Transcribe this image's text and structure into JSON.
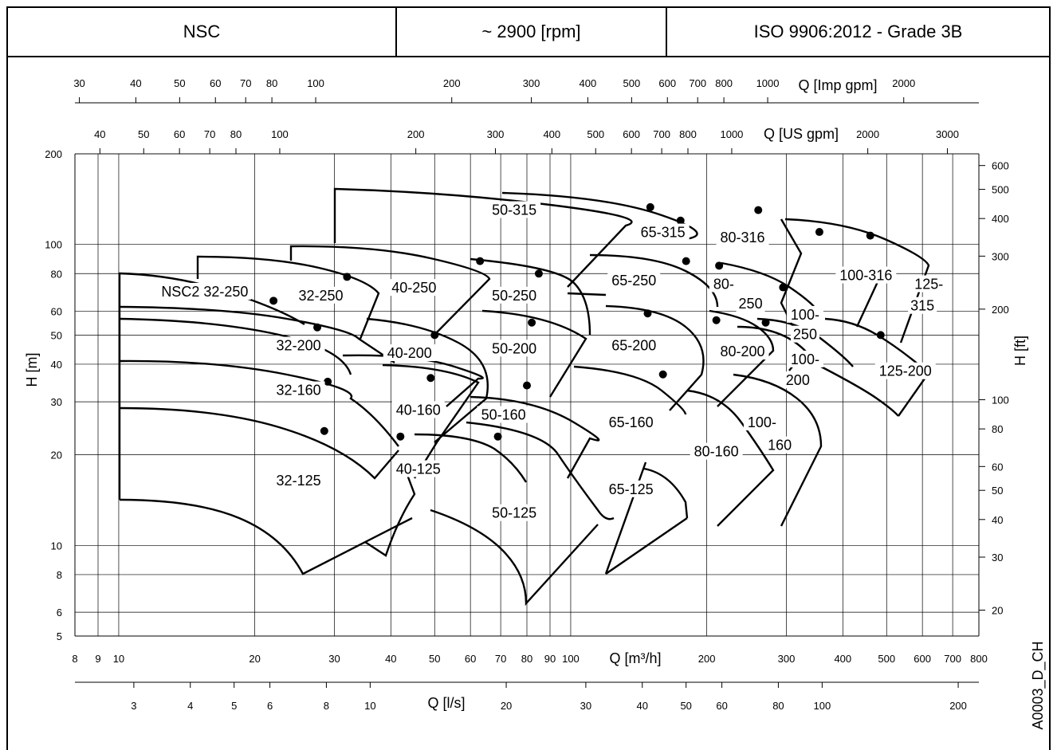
{
  "header": {
    "model": "NSC",
    "speed": "~ 2900 [rpm]",
    "standard": "ISO 9906:2012 - Grade 3B"
  },
  "figure_code": "A0003_D_CH",
  "chart_data": {
    "type": "performance-range-chart",
    "scale": "log-log",
    "xlabel": "Q [m³/h]",
    "ylabel": "H [m]",
    "ylabel_right": "H [ft]",
    "xlabel_ls": "Q [l/s]",
    "xlabel_us": "Q [US gpm]",
    "xlabel_imp": "Q [Imp gpm]",
    "xlim": [
      8,
      800
    ],
    "ylim": [
      5,
      200
    ],
    "x_ticks": [
      8,
      9,
      10,
      20,
      30,
      40,
      50,
      60,
      70,
      80,
      90,
      100,
      200,
      300,
      400,
      500,
      600,
      700,
      800
    ],
    "y_ticks": [
      5,
      6,
      8,
      10,
      20,
      30,
      40,
      50,
      60,
      80,
      100,
      200
    ],
    "ft_ticks": [
      20,
      30,
      40,
      50,
      60,
      80,
      100,
      200,
      300,
      400,
      500,
      600
    ],
    "ls_ticks": [
      3,
      4,
      5,
      6,
      8,
      10,
      20,
      30,
      40,
      50,
      60,
      80,
      100,
      200
    ],
    "us_ticks": [
      40,
      50,
      60,
      70,
      80,
      100,
      200,
      300,
      400,
      500,
      600,
      700,
      800,
      1000,
      2000,
      3000
    ],
    "imp_ticks": [
      30,
      40,
      50,
      60,
      70,
      80,
      100,
      200,
      300,
      400,
      500,
      600,
      700,
      800,
      1000,
      2000
    ],
    "zones": [
      {
        "name": "NSC2 32-250",
        "q": 15.5,
        "h": 68
      },
      {
        "name": "32-250",
        "q": 28,
        "h": 66
      },
      {
        "name": "32-200",
        "q": 25,
        "h": 45
      },
      {
        "name": "32-160",
        "q": 25,
        "h": 32
      },
      {
        "name": "32-125",
        "q": 25,
        "h": 16
      },
      {
        "name": "40-250",
        "q": 45,
        "h": 70
      },
      {
        "name": "40-200",
        "q": 44,
        "h": 42.5
      },
      {
        "name": "40-160",
        "q": 46,
        "h": 27.5
      },
      {
        "name": "40-125",
        "q": 46,
        "h": 17.5
      },
      {
        "name": "50-315",
        "q": 75,
        "h": 127
      },
      {
        "name": "50-250",
        "q": 75,
        "h": 66
      },
      {
        "name": "50-200",
        "q": 75,
        "h": 44
      },
      {
        "name": "50-160",
        "q": 71,
        "h": 26.5
      },
      {
        "name": "50-125",
        "q": 75,
        "h": 12.5
      },
      {
        "name": "65-315",
        "q": 160,
        "h": 107
      },
      {
        "name": "65-250",
        "q": 138,
        "h": 74
      },
      {
        "name": "65-200",
        "q": 138,
        "h": 45
      },
      {
        "name": "65-160",
        "q": 136,
        "h": 25
      },
      {
        "name": "65-125",
        "q": 136,
        "h": 15
      },
      {
        "name": "80-316",
        "q": 240,
        "h": 103
      },
      {
        "name": "80-",
        "q": 218,
        "h": 72
      },
      {
        "name": "250",
        "q": 250,
        "h": 62
      },
      {
        "name": "80-200",
        "q": 240,
        "h": 43
      },
      {
        "name": "80-160",
        "q": 210,
        "h": 20
      },
      {
        "name": "100-316",
        "q": 450,
        "h": 77
      },
      {
        "name": "100-",
        "q": 330,
        "h": 57
      },
      {
        "name": "250",
        "q": 330,
        "h": 49
      },
      {
        "name": "100-",
        "q": 330,
        "h": 40.5
      },
      {
        "name": "200",
        "q": 318,
        "h": 34.5
      },
      {
        "name": "100-",
        "q": 265,
        "h": 25
      },
      {
        "name": "160",
        "q": 290,
        "h": 21
      },
      {
        "name": "125-",
        "q": 620,
        "h": 72
      },
      {
        "name": "315",
        "q": 600,
        "h": 61
      },
      {
        "name": "125-200",
        "q": 550,
        "h": 37
      }
    ],
    "bep_points": [
      {
        "q": 28.5,
        "h": 24
      },
      {
        "q": 29,
        "h": 35
      },
      {
        "q": 27.5,
        "h": 53
      },
      {
        "q": 22,
        "h": 65
      },
      {
        "q": 32,
        "h": 78
      },
      {
        "q": 42,
        "h": 23
      },
      {
        "q": 49,
        "h": 36
      },
      {
        "q": 50,
        "h": 50
      },
      {
        "q": 63,
        "h": 88
      },
      {
        "q": 69,
        "h": 23
      },
      {
        "q": 80,
        "h": 34
      },
      {
        "q": 82,
        "h": 55
      },
      {
        "q": 85,
        "h": 80
      },
      {
        "q": 160,
        "h": 37
      },
      {
        "q": 148,
        "h": 59
      },
      {
        "q": 180,
        "h": 88
      },
      {
        "q": 150,
        "h": 133
      },
      {
        "q": 175,
        "h": 120
      },
      {
        "q": 210,
        "h": 56
      },
      {
        "q": 213,
        "h": 85
      },
      {
        "q": 260,
        "h": 130
      },
      {
        "q": 295,
        "h": 72
      },
      {
        "q": 270,
        "h": 55
      },
      {
        "q": 355,
        "h": 110
      },
      {
        "q": 460,
        "h": 107
      },
      {
        "q": 485,
        "h": 50
      }
    ]
  }
}
